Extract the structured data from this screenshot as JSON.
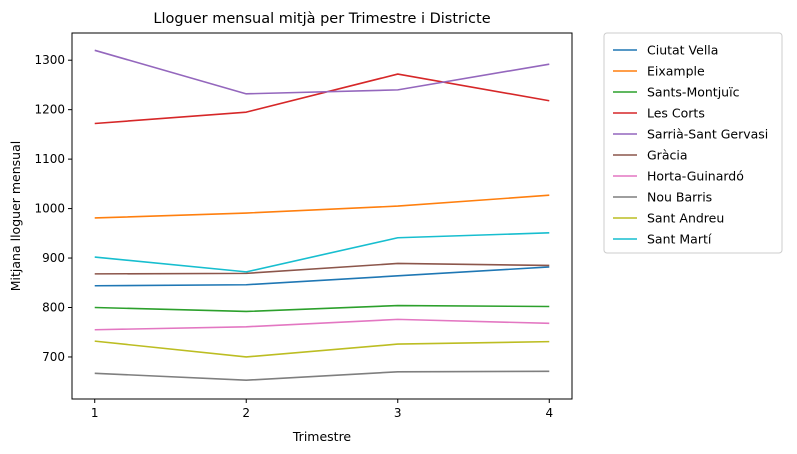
{
  "chart_data": {
    "type": "line",
    "title": "Lloguer mensual mitjà per Trimestre i Districte",
    "xlabel": "Trimestre",
    "ylabel": "Mitjana lloguer mensual",
    "x": [
      1,
      2,
      3,
      4
    ],
    "x_tick_labels": [
      "1",
      "2",
      "3",
      "4"
    ],
    "ylim": [
      615,
      1355
    ],
    "y_ticks": [
      700,
      800,
      900,
      1000,
      1100,
      1200,
      1300
    ],
    "y_tick_labels": [
      "700",
      "800",
      "900",
      "1000",
      "1100",
      "1200",
      "1300"
    ],
    "grid": false,
    "legend_position": "outside-right",
    "series": [
      {
        "name": "Ciutat Vella",
        "color": "#1f77b4",
        "values": [
          844,
          846,
          864,
          882
        ]
      },
      {
        "name": "Eixample",
        "color": "#ff7f0e",
        "values": [
          981,
          991,
          1005,
          1027
        ]
      },
      {
        "name": "Sants-Montjuïc",
        "color": "#2ca02c",
        "values": [
          800,
          792,
          804,
          802
        ]
      },
      {
        "name": "Les Corts",
        "color": "#d62728",
        "values": [
          1172,
          1195,
          1272,
          1218
        ]
      },
      {
        "name": "Sarrià-Sant Gervasi",
        "color": "#9467bd",
        "values": [
          1320,
          1232,
          1240,
          1292
        ]
      },
      {
        "name": "Gràcia",
        "color": "#8c564b",
        "values": [
          868,
          869,
          889,
          885
        ]
      },
      {
        "name": "Horta-Guinardó",
        "color": "#e377c2",
        "values": [
          755,
          761,
          776,
          768
        ]
      },
      {
        "name": "Nou Barris",
        "color": "#7f7f7f",
        "values": [
          667,
          653,
          670,
          671
        ]
      },
      {
        "name": "Sant Andreu",
        "color": "#bcbd22",
        "values": [
          732,
          700,
          726,
          731
        ]
      },
      {
        "name": "Sant Martí",
        "color": "#17becf",
        "values": [
          902,
          872,
          941,
          951
        ]
      }
    ]
  }
}
